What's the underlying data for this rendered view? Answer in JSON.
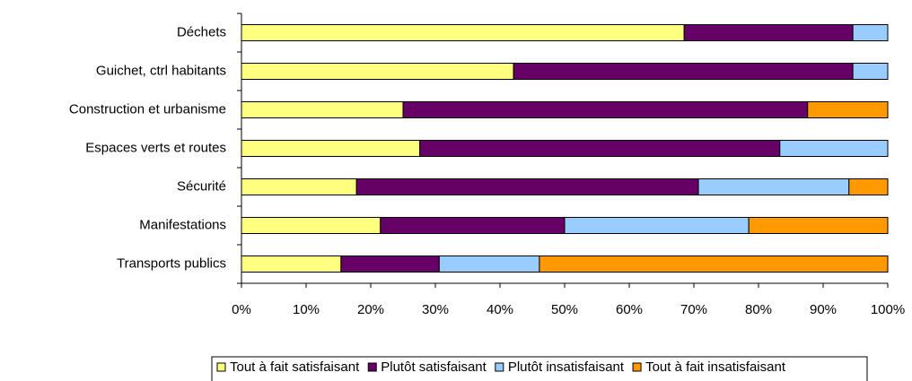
{
  "chart_data": {
    "type": "stacked_bar_horizontal",
    "categories": [
      "Déchets",
      "Guichet, ctrl habitants",
      "Construction et urbanisme",
      "Espaces verts et routes",
      "Sécurité",
      "Manifestations",
      "Transports publics"
    ],
    "series": [
      {
        "name": "Tout à fait satisfaisant",
        "color": "#ffff80",
        "values": [
          68.5,
          42.1,
          25.0,
          27.6,
          17.8,
          21.5,
          15.4
        ]
      },
      {
        "name": "Plutôt satisfaisant",
        "color": "#660066",
        "values": [
          26.1,
          52.5,
          62.6,
          55.7,
          52.9,
          28.5,
          15.2
        ]
      },
      {
        "name": "Plutôt insatisfaisant",
        "color": "#99ccff",
        "values": [
          5.4,
          5.4,
          0,
          16.7,
          23.3,
          28.5,
          15.5
        ]
      },
      {
        "name": "Tout à fait insatisfaisant",
        "color": "#ff9900",
        "values": [
          0,
          0,
          12.4,
          0,
          6.0,
          21.5,
          53.9
        ]
      }
    ],
    "xlim": [
      0,
      100
    ],
    "xticks": [
      {
        "value": 0,
        "label": "0%"
      },
      {
        "value": 10,
        "label": "10%"
      },
      {
        "value": 20,
        "label": "20%"
      },
      {
        "value": 30,
        "label": "30%"
      },
      {
        "value": 40,
        "label": "40%"
      },
      {
        "value": 50,
        "label": "50%"
      },
      {
        "value": 60,
        "label": "60%"
      },
      {
        "value": 70,
        "label": "70%"
      },
      {
        "value": 80,
        "label": "80%"
      },
      {
        "value": 90,
        "label": "90%"
      },
      {
        "value": 100,
        "label": "100%"
      }
    ],
    "legend": "bottom"
  }
}
